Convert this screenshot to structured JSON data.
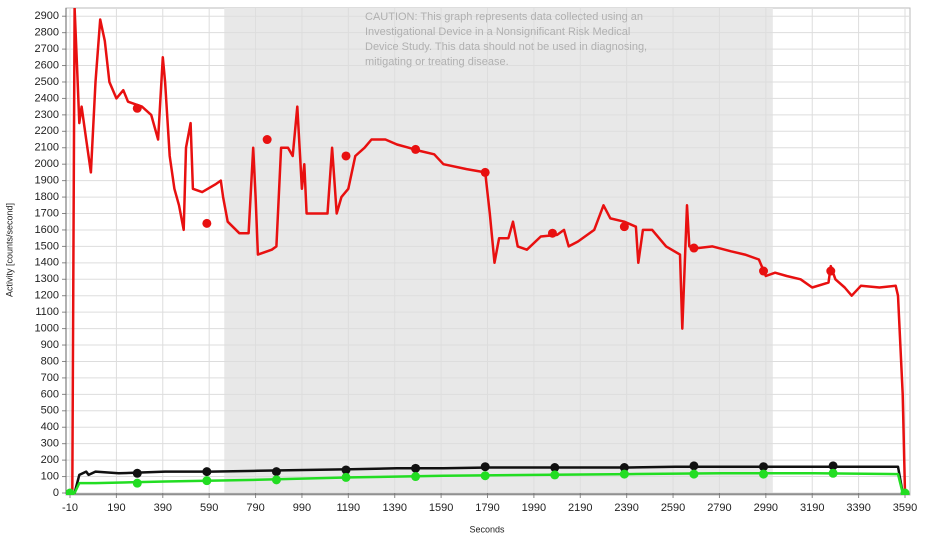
{
  "chart_data": {
    "type": "line",
    "x_label": "Seconds",
    "y_label": "Activity [counts/second]",
    "annotation": [
      "CAUTION: This graph represents data collected using an",
      "Investigational Device in a Nonsignificant Risk Medical",
      "Device Study. This data should not be used in diagnosing,",
      "mitigating or treating disease."
    ],
    "xlim": [
      -10,
      3590
    ],
    "ylim": [
      0,
      2950
    ],
    "xticks": [
      -10,
      190,
      390,
      590,
      790,
      990,
      1190,
      1390,
      1590,
      1790,
      1990,
      2190,
      2390,
      2590,
      2790,
      2990,
      3190,
      3390,
      3590
    ],
    "yticks": [
      0,
      100,
      200,
      300,
      400,
      500,
      600,
      700,
      800,
      900,
      1000,
      1100,
      1200,
      1300,
      1400,
      1500,
      1600,
      1700,
      1800,
      1900,
      2000,
      2100,
      2200,
      2300,
      2400,
      2500,
      2600,
      2700,
      2800,
      2900
    ],
    "grid": true,
    "shaded_region": [
      655,
      3020
    ],
    "shade_color": "#e8e8e8",
    "series": [
      {
        "color": "#e81010",
        "x": [
          -10,
          0,
          10,
          20,
          30,
          40,
          60,
          80,
          100,
          120,
          140,
          160,
          190,
          220,
          240,
          300,
          340,
          370,
          390,
          400,
          420,
          440,
          460,
          480,
          490,
          510,
          520,
          560,
          620,
          640,
          650,
          670,
          720,
          760,
          780,
          790,
          800,
          860,
          880,
          900,
          930,
          950,
          970,
          980,
          990,
          1000,
          1010,
          1080,
          1100,
          1120,
          1140,
          1160,
          1190,
          1220,
          1260,
          1290,
          1350,
          1400,
          1450,
          1500,
          1560,
          1600,
          1700,
          1780,
          1800,
          1820,
          1840,
          1880,
          1900,
          1920,
          1960,
          2020,
          2090,
          2120,
          2140,
          2180,
          2250,
          2290,
          2320,
          2380,
          2430,
          2440,
          2460,
          2500,
          2560,
          2620,
          2630,
          2650,
          2660,
          2700,
          2760,
          2840,
          2900,
          2960,
          2990,
          3030,
          3080,
          3140,
          3190,
          3260,
          3270,
          3290,
          3330,
          3360,
          3400,
          3480,
          3550,
          3560,
          3580,
          3590
        ],
        "values": [
          0,
          0,
          2950,
          2600,
          2250,
          2350,
          2150,
          1950,
          2500,
          2880,
          2750,
          2500,
          2400,
          2450,
          2380,
          2350,
          2300,
          2150,
          2650,
          2500,
          2050,
          1850,
          1750,
          1600,
          2100,
          2250,
          1850,
          1830,
          1880,
          1900,
          1800,
          1650,
          1580,
          1580,
          2100,
          1800,
          1450,
          1480,
          1500,
          2100,
          2100,
          2050,
          2350,
          2100,
          1850,
          2000,
          1700,
          1700,
          1700,
          2100,
          1700,
          1800,
          1850,
          2050,
          2100,
          2150,
          2150,
          2120,
          2100,
          2080,
          2060,
          2000,
          1970,
          1950,
          1700,
          1400,
          1550,
          1550,
          1650,
          1500,
          1480,
          1560,
          1570,
          1600,
          1500,
          1530,
          1600,
          1750,
          1670,
          1650,
          1620,
          1400,
          1600,
          1600,
          1500,
          1450,
          1000,
          1750,
          1500,
          1490,
          1500,
          1470,
          1450,
          1420,
          1320,
          1340,
          1320,
          1300,
          1250,
          1280,
          1380,
          1300,
          1250,
          1200,
          1260,
          1250,
          1260,
          1200,
          600,
          0
        ],
        "markers": {
          "x": [
            280,
            580,
            840,
            1180,
            1480,
            1780,
            2070,
            2380,
            2680,
            2980,
            3270
          ],
          "values": [
            2340,
            1640,
            2150,
            2050,
            2090,
            1950,
            1580,
            1620,
            1490,
            1350,
            1350
          ]
        }
      },
      {
        "color": "#111111",
        "x": [
          -10,
          10,
          30,
          60,
          70,
          100,
          200,
          400,
          600,
          800,
          1000,
          1200,
          1400,
          1600,
          1800,
          2000,
          2200,
          2400,
          2600,
          2800,
          3000,
          3200,
          3400,
          3560,
          3580,
          3590
        ],
        "values": [
          0,
          0,
          110,
          130,
          110,
          130,
          120,
          130,
          130,
          135,
          140,
          145,
          150,
          150,
          155,
          155,
          155,
          155,
          160,
          160,
          160,
          160,
          160,
          160,
          0,
          0
        ],
        "markers": {
          "x": [
            280,
            580,
            880,
            1180,
            1480,
            1780,
            2080,
            2380,
            2680,
            2980,
            3280
          ],
          "values": [
            120,
            130,
            130,
            140,
            150,
            160,
            155,
            155,
            165,
            160,
            165
          ]
        }
      },
      {
        "color": "#22dd22",
        "x": [
          -10,
          10,
          30,
          100,
          400,
          800,
          1200,
          1600,
          2000,
          2400,
          2800,
          3200,
          3560,
          3580,
          3590
        ],
        "values": [
          0,
          0,
          60,
          60,
          70,
          80,
          95,
          105,
          110,
          115,
          120,
          120,
          115,
          0,
          0
        ],
        "markers": {
          "x": [
            -10,
            280,
            580,
            880,
            1180,
            1480,
            1780,
            2080,
            2380,
            2680,
            2980,
            3280,
            3590
          ],
          "values": [
            0,
            60,
            75,
            80,
            95,
            100,
            105,
            110,
            115,
            115,
            115,
            120,
            0
          ]
        }
      }
    ]
  }
}
